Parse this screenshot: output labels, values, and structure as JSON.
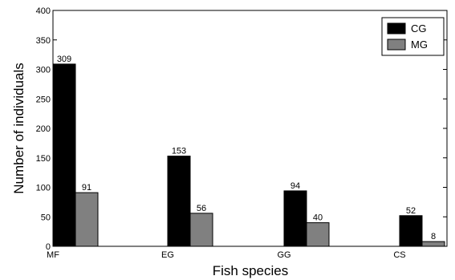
{
  "chart_data": {
    "type": "bar",
    "title": "",
    "xlabel": "Fish species",
    "ylabel": "Number of individuals",
    "categories": [
      "MF",
      "EG",
      "GG",
      "CS"
    ],
    "series": [
      {
        "name": "CG",
        "values": [
          309,
          153,
          94,
          52
        ],
        "color": "#000000"
      },
      {
        "name": "MG",
        "values": [
          91,
          56,
          40,
          8
        ],
        "color": "#808080"
      }
    ],
    "ylim": [
      0,
      400
    ],
    "yticks": [
      0,
      50,
      100,
      150,
      200,
      250,
      300,
      350,
      400
    ],
    "grid": false,
    "legend_position": "top-right",
    "data_labels": true
  }
}
